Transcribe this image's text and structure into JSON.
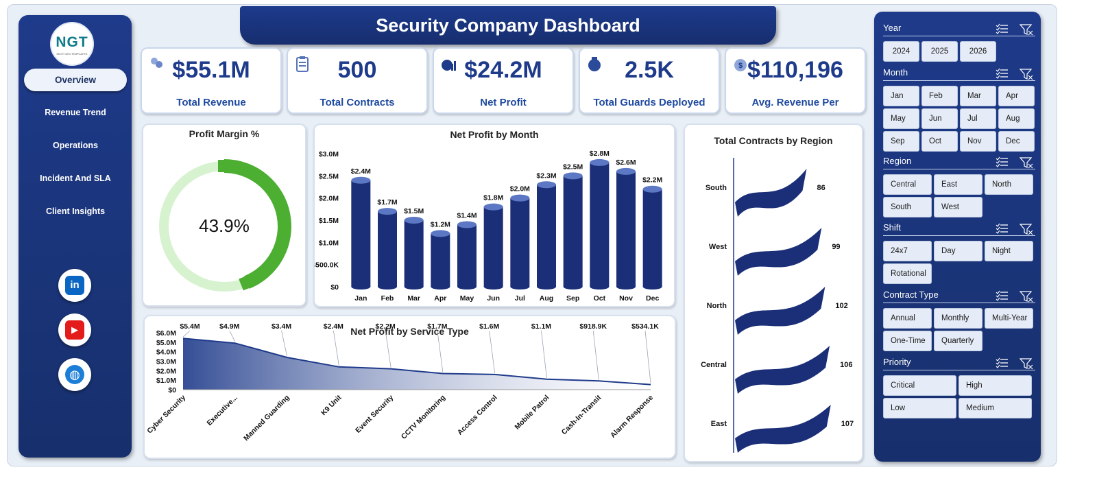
{
  "title": "Security Company Dashboard",
  "logo": {
    "text": "NGT",
    "sub": "NEXT GEN TEMPLATES"
  },
  "nav": [
    {
      "label": "Overview",
      "active": true
    },
    {
      "label": "Revenue Trend"
    },
    {
      "label": "Operations"
    },
    {
      "label": "Incident And SLA"
    },
    {
      "label": "Client Insights"
    }
  ],
  "social": [
    {
      "icon": "linkedin-icon",
      "glyph": "in",
      "color": "#0a66c2"
    },
    {
      "icon": "youtube-icon",
      "glyph": "▶",
      "color": "#e31b1b"
    },
    {
      "icon": "globe-icon",
      "glyph": "◍",
      "color": "#1c7ed6"
    }
  ],
  "kpis": [
    {
      "value": "$55.1M",
      "label": "Total Revenue",
      "icon": "revenue-icon"
    },
    {
      "value": "500",
      "label": "Total Contracts",
      "icon": "clipboard-icon"
    },
    {
      "value": "$24.2M",
      "label": "Net Profit",
      "icon": "money-bag-icon"
    },
    {
      "value": "2.5K",
      "label": "Total Guards Deployed",
      "icon": "guard-bag-icon"
    },
    {
      "value": "$110,196",
      "label": "Avg. Revenue Per",
      "icon": "dollar-bag-icon"
    }
  ],
  "colors": {
    "navy": "#1e3a8a",
    "bar": "#1b2f78",
    "green": "#4caf32",
    "lightgreen": "#d7f2cf"
  },
  "chart_data": [
    {
      "type": "pie",
      "title": "Profit Margin %",
      "value": 43.9,
      "label": "43.9%"
    },
    {
      "type": "bar",
      "title": "Net Profit by Month",
      "categories": [
        "Jan",
        "Feb",
        "Mar",
        "Apr",
        "May",
        "Jun",
        "Jul",
        "Aug",
        "Sep",
        "Oct",
        "Nov",
        "Dec"
      ],
      "values": [
        2.4,
        1.7,
        1.5,
        1.2,
        1.4,
        1.8,
        2.0,
        2.3,
        2.5,
        2.8,
        2.6,
        2.2
      ],
      "data_labels": [
        "$2.4M",
        "$1.7M",
        "$1.5M",
        "$1.2M",
        "$1.4M",
        "$1.8M",
        "$2.0M",
        "$2.3M",
        "$2.5M",
        "$2.8M",
        "$2.6M",
        "$2.2M"
      ],
      "yticks": [
        "$0",
        "$500.0K",
        "$1.0M",
        "$1.5M",
        "$2.0M",
        "$2.5M",
        "$3.0M"
      ],
      "ylim": [
        0,
        3.0
      ]
    },
    {
      "type": "area",
      "title": "Net Profit by Service Type",
      "categories": [
        "Cyber Security",
        "Executive...",
        "Manned Guarding",
        "K9 Unit",
        "Event Security",
        "CCTV Monitoring",
        "Access Control",
        "Mobile Patrol",
        "Cash-In-Transit",
        "Alarm Response"
      ],
      "values": [
        5.4,
        4.9,
        3.4,
        2.4,
        2.2,
        1.7,
        1.6,
        1.1,
        0.9189,
        0.5341
      ],
      "data_labels": [
        "$5.4M",
        "$4.9M",
        "$3.4M",
        "$2.4M",
        "$2.2M",
        "$1.7M",
        "$1.6M",
        "$1.1M",
        "$918.9K",
        "$534.1K"
      ],
      "yticks": [
        "$0",
        "$1.0M",
        "$2.0M",
        "$3.0M",
        "$4.0M",
        "$5.0M",
        "$6.0M"
      ],
      "ylim": [
        0,
        6.0
      ]
    },
    {
      "type": "bar",
      "title": "Total Contracts by Region",
      "categories": [
        "South",
        "West",
        "North",
        "Central",
        "East"
      ],
      "values": [
        86,
        99,
        102,
        106,
        107
      ]
    }
  ],
  "filters": [
    {
      "name": "Year",
      "items": [
        "2024",
        "2025",
        "2026"
      ]
    },
    {
      "name": "Month",
      "items": [
        "Jan",
        "Feb",
        "Mar",
        "Apr",
        "May",
        "Jun",
        "Jul",
        "Aug",
        "Sep",
        "Oct",
        "Nov",
        "Dec"
      ]
    },
    {
      "name": "Region",
      "items": [
        "Central",
        "East",
        "North",
        "South",
        "West"
      ]
    },
    {
      "name": "Shift",
      "items": [
        "24x7",
        "Day",
        "Night",
        "Rotational"
      ]
    },
    {
      "name": "Contract Type",
      "items": [
        "Annual",
        "Monthly",
        "Multi-Year",
        "One-Time",
        "Quarterly"
      ]
    },
    {
      "name": "Priority",
      "items": [
        "Critical",
        "High",
        "Low",
        "Medium"
      ]
    }
  ]
}
